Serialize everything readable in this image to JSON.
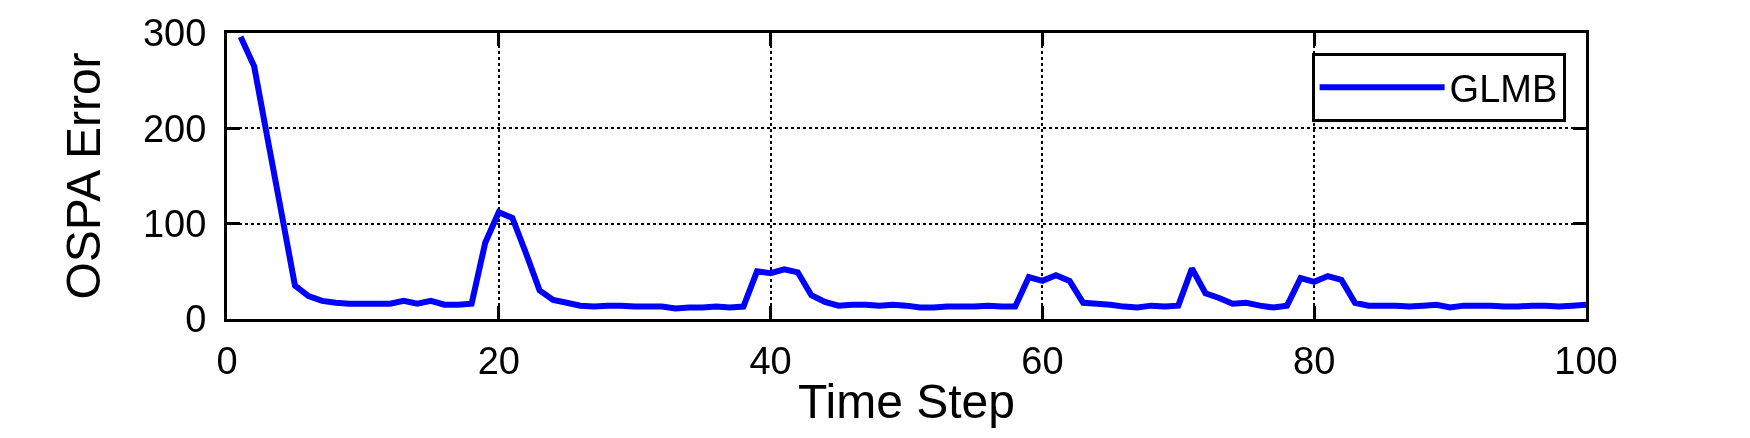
{
  "chart_data": {
    "type": "line",
    "xlabel": "Time Step",
    "ylabel": "OSPA Error",
    "x": [
      1,
      2,
      3,
      4,
      5,
      6,
      7,
      8,
      9,
      10,
      11,
      12,
      13,
      14,
      15,
      16,
      17,
      18,
      19,
      20,
      21,
      22,
      23,
      24,
      25,
      26,
      27,
      28,
      29,
      30,
      31,
      32,
      33,
      34,
      35,
      36,
      37,
      38,
      39,
      40,
      41,
      42,
      43,
      44,
      45,
      46,
      47,
      48,
      49,
      50,
      51,
      52,
      53,
      54,
      55,
      56,
      57,
      58,
      59,
      60,
      61,
      62,
      63,
      64,
      65,
      66,
      67,
      68,
      69,
      70,
      71,
      72,
      73,
      74,
      75,
      76,
      77,
      78,
      79,
      80,
      81,
      82,
      83,
      84,
      85,
      86,
      87,
      88,
      89,
      90,
      91,
      92,
      93,
      94,
      95,
      96,
      97,
      98,
      99,
      100
    ],
    "series": [
      {
        "name": "GLMB",
        "color": "#0000ff",
        "values": [
          296,
          265,
          188,
          112,
          35,
          24,
          19,
          17,
          16,
          16,
          16,
          16,
          19,
          16,
          19,
          15,
          15,
          16,
          80,
          112,
          106,
          69,
          30,
          20,
          17,
          14,
          13,
          14,
          14,
          13,
          13,
          13,
          11,
          12,
          12,
          13,
          12,
          13,
          50,
          48,
          52,
          49,
          25,
          18,
          14,
          15,
          15,
          14,
          15,
          14,
          12,
          12,
          13,
          13,
          13,
          14,
          13,
          13,
          44,
          40,
          46,
          40,
          17,
          16,
          15,
          13,
          12,
          14,
          13,
          14,
          53,
          27,
          22,
          16,
          17,
          14,
          12,
          14,
          43,
          39,
          45,
          41,
          17,
          14,
          14,
          14,
          13,
          14,
          15,
          12,
          14,
          14,
          14,
          13,
          13,
          14,
          14,
          13,
          14,
          15
        ]
      }
    ],
    "xlim": [
      0,
      100
    ],
    "ylim": [
      0,
      300
    ],
    "xticks": [
      0,
      20,
      40,
      60,
      80,
      100
    ],
    "yticks": [
      0,
      100,
      200,
      300
    ],
    "grid": true,
    "legend": "top right",
    "marker": "none",
    "line_style": "solid"
  }
}
